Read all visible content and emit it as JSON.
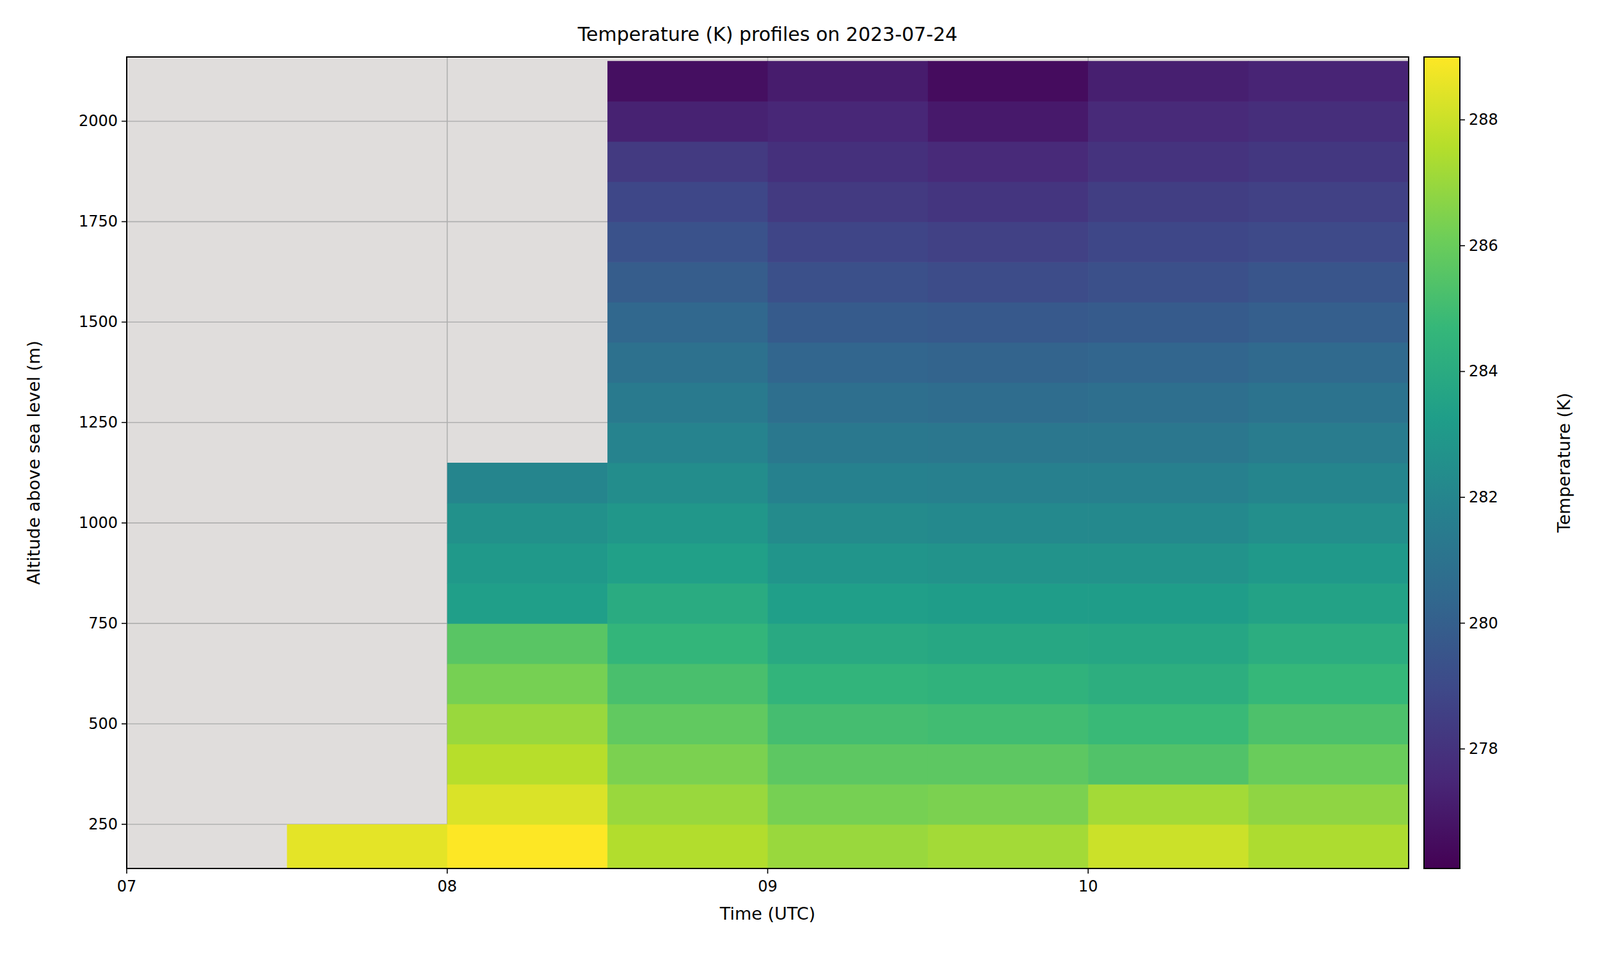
{
  "chart_data": {
    "type": "heatmap",
    "title": "Temperature (K) profiles on 2023-07-24",
    "x_label": "Time (UTC)",
    "y_label": "Altitude above sea level (m)",
    "xlim": [
      7,
      11
    ],
    "xticks": [
      {
        "value": 7,
        "label": "07"
      },
      {
        "value": 8,
        "label": "08"
      },
      {
        "value": 9,
        "label": "09"
      },
      {
        "value": 10,
        "label": "10"
      }
    ],
    "ylim": [
      140,
      2160
    ],
    "yticks": [
      250,
      500,
      750,
      1000,
      1250,
      1500,
      1750,
      2000
    ],
    "grid": true,
    "x_edges": [
      7.5,
      8,
      8.5,
      9,
      9.5,
      10,
      10.5,
      11
    ],
    "y_edges": [
      140,
      250,
      350,
      450,
      550,
      650,
      750,
      850,
      950,
      1050,
      1150,
      1250,
      1350,
      1450,
      1550,
      1650,
      1750,
      1850,
      1950,
      2050,
      2150
    ],
    "cells": [
      [
        288.5,
        null,
        null,
        null,
        null,
        null,
        null,
        null,
        null,
        null,
        null,
        null,
        null,
        null,
        null,
        null,
        null,
        null,
        null,
        null
      ],
      [
        289,
        288.3,
        287.6,
        287,
        286.3,
        285.6,
        283.3,
        283,
        282.6,
        282,
        null,
        null,
        null,
        null,
        null,
        null,
        null,
        null,
        null,
        null
      ],
      [
        287.5,
        287,
        286.4,
        285.8,
        285.2,
        284.6,
        284,
        283.4,
        282.9,
        282.4,
        281.9,
        281.4,
        280.9,
        280.4,
        279.9,
        279.4,
        278.9,
        278.3,
        277.3,
        276.6
      ],
      [
        287,
        286.3,
        285.7,
        285.1,
        284.5,
        283.9,
        283.3,
        282.8,
        282.3,
        281.8,
        281.3,
        280.8,
        280.3,
        279.8,
        279.3,
        278.8,
        278.3,
        277.9,
        277.5,
        277.1
      ],
      [
        287.2,
        286.4,
        285.7,
        285,
        284.4,
        283.8,
        283.2,
        282.7,
        282.2,
        281.7,
        281.2,
        280.7,
        280.2,
        279.7,
        279.1,
        278.6,
        278.1,
        277.6,
        277,
        276.5
      ],
      [
        288,
        287.2,
        285.4,
        284.8,
        284.2,
        283.7,
        283.2,
        282.7,
        282.2,
        281.7,
        281.2,
        280.8,
        280.3,
        279.8,
        279.3,
        278.9,
        278.5,
        278,
        277.6,
        277.2
      ],
      [
        287.4,
        286.8,
        286,
        285.3,
        284.7,
        284.1,
        283.5,
        283,
        282.5,
        282,
        281.5,
        281,
        280.5,
        280,
        279.5,
        279,
        278.6,
        278.2,
        277.8,
        277.4
      ]
    ],
    "colorbar": {
      "label": "Temperature (K)",
      "range": [
        276.1,
        289
      ],
      "ticks": [
        278,
        280,
        282,
        284,
        286,
        288
      ]
    }
  }
}
